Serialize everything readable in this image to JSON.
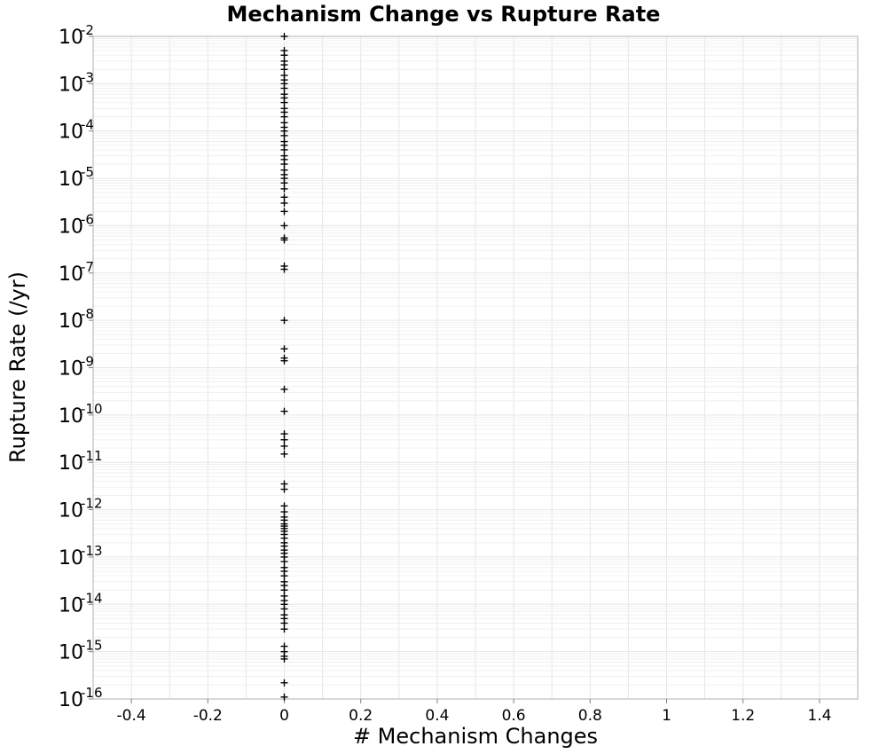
{
  "chart_data": {
    "type": "scatter",
    "title": "Mechanism Change vs Rupture Rate",
    "xlabel": "# Mechanism Changes",
    "ylabel": "Rupture Rate (/yr)",
    "xlim": [
      -0.5,
      1.5
    ],
    "ylim": [
      1e-16,
      0.01
    ],
    "yscale": "log",
    "grid": true,
    "x_ticks": [
      "-0.4",
      "-0.2",
      "0",
      "0.2",
      "0.4",
      "0.6",
      "0.8",
      "1",
      "1.2",
      "1.4"
    ],
    "y_ticks": [
      {
        "base": "10",
        "exp": "-16"
      },
      {
        "base": "10",
        "exp": "-15"
      },
      {
        "base": "10",
        "exp": "-14"
      },
      {
        "base": "10",
        "exp": "-13"
      },
      {
        "base": "10",
        "exp": "-12"
      },
      {
        "base": "10",
        "exp": "-11"
      },
      {
        "base": "10",
        "exp": "-10"
      },
      {
        "base": "10",
        "exp": "-9"
      },
      {
        "base": "10",
        "exp": "-8"
      },
      {
        "base": "10",
        "exp": "-7"
      },
      {
        "base": "10",
        "exp": "-6"
      },
      {
        "base": "10",
        "exp": "-5"
      },
      {
        "base": "10",
        "exp": "-4"
      },
      {
        "base": "10",
        "exp": "-3"
      },
      {
        "base": "10",
        "exp": "-2"
      }
    ],
    "marker": "+",
    "marker_color": "#000000",
    "points": [
      {
        "x": 0,
        "y": 0.01
      },
      {
        "x": 0,
        "y": 0.005
      },
      {
        "x": 0,
        "y": 0.004
      },
      {
        "x": 0,
        "y": 0.003
      },
      {
        "x": 0,
        "y": 0.0025
      },
      {
        "x": 0,
        "y": 0.002
      },
      {
        "x": 0,
        "y": 0.0015
      },
      {
        "x": 0,
        "y": 0.0012
      },
      {
        "x": 0,
        "y": 0.001
      },
      {
        "x": 0,
        "y": 0.0008
      },
      {
        "x": 0,
        "y": 0.0006
      },
      {
        "x": 0,
        "y": 0.0005
      },
      {
        "x": 0,
        "y": 0.0004
      },
      {
        "x": 0,
        "y": 0.0003
      },
      {
        "x": 0,
        "y": 0.00025
      },
      {
        "x": 0,
        "y": 0.0002
      },
      {
        "x": 0,
        "y": 0.00015
      },
      {
        "x": 0,
        "y": 0.00012
      },
      {
        "x": 0,
        "y": 0.0001
      },
      {
        "x": 0,
        "y": 8e-05
      },
      {
        "x": 0,
        "y": 6e-05
      },
      {
        "x": 0,
        "y": 5e-05
      },
      {
        "x": 0,
        "y": 4e-05
      },
      {
        "x": 0,
        "y": 3e-05
      },
      {
        "x": 0,
        "y": 2.5e-05
      },
      {
        "x": 0,
        "y": 2e-05
      },
      {
        "x": 0,
        "y": 1.5e-05
      },
      {
        "x": 0,
        "y": 1.2e-05
      },
      {
        "x": 0,
        "y": 1e-05
      },
      {
        "x": 0,
        "y": 8e-06
      },
      {
        "x": 0,
        "y": 6e-06
      },
      {
        "x": 0,
        "y": 4e-06
      },
      {
        "x": 0,
        "y": 3e-06
      },
      {
        "x": 0,
        "y": 2e-06
      },
      {
        "x": 0,
        "y": 1e-06
      },
      {
        "x": 0,
        "y": 5.5e-07
      },
      {
        "x": 0,
        "y": 5e-07
      },
      {
        "x": 0,
        "y": 1.4e-07
      },
      {
        "x": 0,
        "y": 1.2e-07
      },
      {
        "x": 0,
        "y": 1e-08
      },
      {
        "x": 0,
        "y": 2.5e-09
      },
      {
        "x": 0,
        "y": 1.6e-09
      },
      {
        "x": 0,
        "y": 1.4e-09
      },
      {
        "x": 0,
        "y": 3.5e-10
      },
      {
        "x": 0,
        "y": 1.2e-10
      },
      {
        "x": 0,
        "y": 4e-11
      },
      {
        "x": 0,
        "y": 3e-11
      },
      {
        "x": 0,
        "y": 2.2e-11
      },
      {
        "x": 0,
        "y": 1.5e-11
      },
      {
        "x": 0,
        "y": 3.5e-12
      },
      {
        "x": 0,
        "y": 2.7e-12
      },
      {
        "x": 0,
        "y": 1.2e-12
      },
      {
        "x": 0,
        "y": 9e-13
      },
      {
        "x": 0,
        "y": 7e-13
      },
      {
        "x": 0,
        "y": 6e-13
      },
      {
        "x": 0,
        "y": 5e-13
      },
      {
        "x": 0,
        "y": 4.5e-13
      },
      {
        "x": 0,
        "y": 4e-13
      },
      {
        "x": 0,
        "y": 3.5e-13
      },
      {
        "x": 0,
        "y": 3e-13
      },
      {
        "x": 0,
        "y": 2.5e-13
      },
      {
        "x": 0,
        "y": 2e-13
      },
      {
        "x": 0,
        "y": 1.7e-13
      },
      {
        "x": 0,
        "y": 1.4e-13
      },
      {
        "x": 0,
        "y": 1.2e-13
      },
      {
        "x": 0,
        "y": 1e-13
      },
      {
        "x": 0,
        "y": 8e-14
      },
      {
        "x": 0,
        "y": 6e-14
      },
      {
        "x": 0,
        "y": 5e-14
      },
      {
        "x": 0,
        "y": 4e-14
      },
      {
        "x": 0,
        "y": 3e-14
      },
      {
        "x": 0,
        "y": 2.5e-14
      },
      {
        "x": 0,
        "y": 2e-14
      },
      {
        "x": 0,
        "y": 1.5e-14
      },
      {
        "x": 0,
        "y": 1.2e-14
      },
      {
        "x": 0,
        "y": 1e-14
      },
      {
        "x": 0,
        "y": 8e-15
      },
      {
        "x": 0,
        "y": 6e-15
      },
      {
        "x": 0,
        "y": 5e-15
      },
      {
        "x": 0,
        "y": 4e-15
      },
      {
        "x": 0,
        "y": 3e-15
      },
      {
        "x": 0,
        "y": 1.3e-15
      },
      {
        "x": 0,
        "y": 1e-15
      },
      {
        "x": 0,
        "y": 8e-16
      },
      {
        "x": 0,
        "y": 7e-16
      },
      {
        "x": 0,
        "y": 2.2e-16
      },
      {
        "x": 0,
        "y": 1.1e-16
      }
    ]
  },
  "colors": {
    "background": "#ffffff",
    "plot_border": "#b0b0b0",
    "grid": "#e6e6e6",
    "grid_minor": "#f0f0f0",
    "marker": "#000000"
  }
}
